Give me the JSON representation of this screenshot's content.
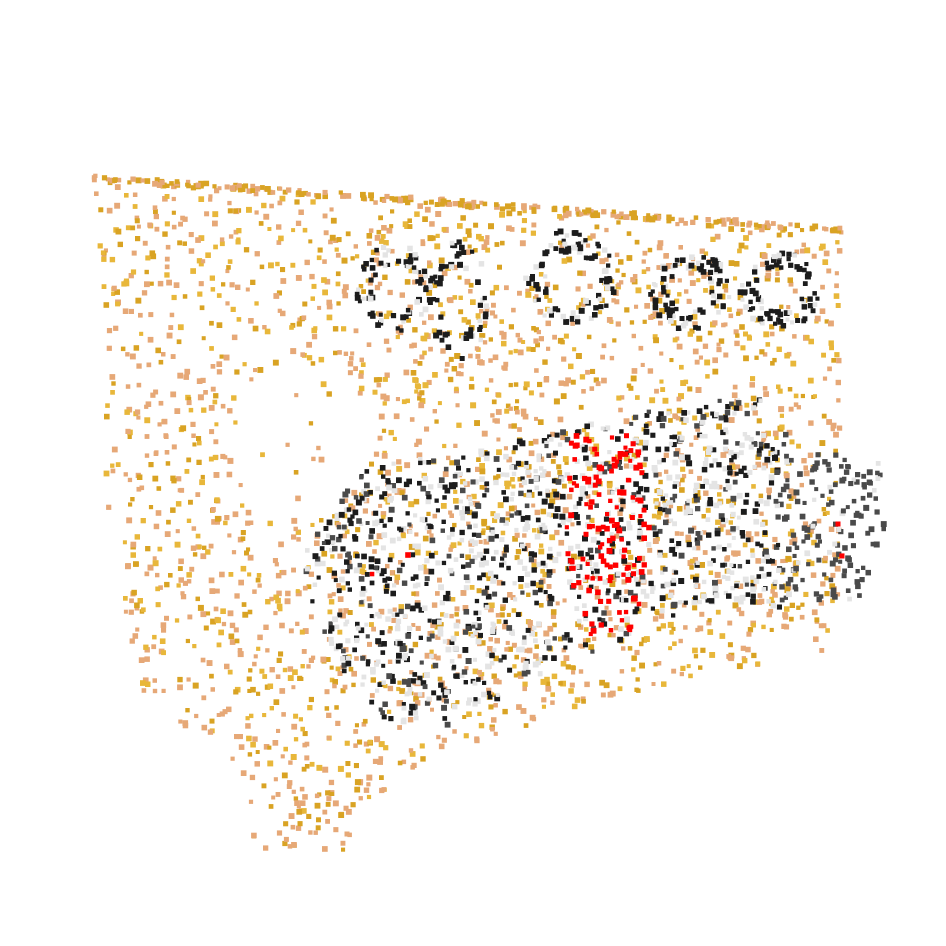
{
  "scene": {
    "kind": "point-cloud",
    "background": "#ffffff",
    "palette": {
      "wall_gold": "#d9a323",
      "wall_yellow": "#e8b73a",
      "wall_peach": "#e6a877",
      "object_black": "#1c1c1c",
      "object_gray": "#4a4a4a",
      "object_light": "#e4e4e4",
      "highlight_red": "#ff0000"
    }
  }
}
